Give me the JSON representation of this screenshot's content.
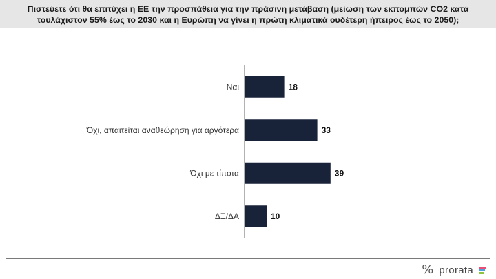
{
  "title": "Πιστεύετε ότι θα επιτύχει η ΕΕ την προσπάθεια  για την πράσινη μετάβαση (μείωση των εκπομπών CO2 κατά\nτουλάχιστον 55% έως το 2030 και η Ευρώπη να γίνει η πρώτη κλιματικά ουδέτερη ήπειρος έως το 2050);",
  "brand": {
    "mark": "%",
    "name": "prorata",
    "stripe_colors": [
      "#e94e77",
      "#4aa3df",
      "#8cc63f"
    ]
  },
  "colors": {
    "bar": "#18233a",
    "axis": "#666666"
  },
  "chart_data": {
    "type": "bar",
    "orientation": "horizontal",
    "categories": [
      "Ναι",
      "Όχι, απαιτείται αναθεώρηση για αργότερα",
      "Όχι με τίποτα",
      "ΔΞ/ΔΑ"
    ],
    "values": [
      18,
      33,
      39,
      10
    ],
    "data_labels": [
      "18",
      "33",
      "39",
      "10"
    ],
    "title": "",
    "xlabel": "",
    "ylabel": "",
    "xlim": [
      0,
      100
    ],
    "grid": false,
    "legend": "none"
  }
}
